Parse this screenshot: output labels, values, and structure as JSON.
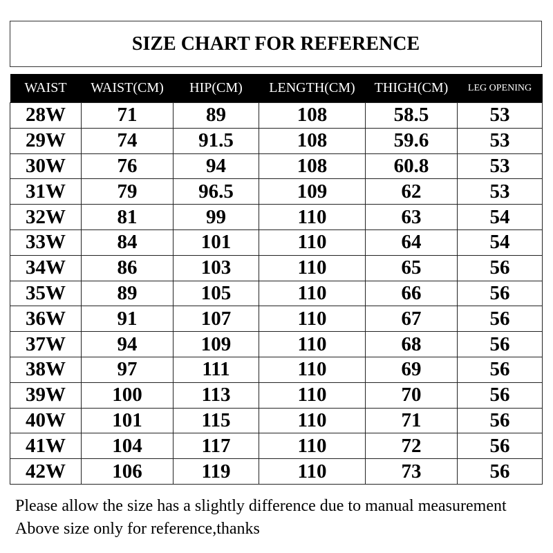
{
  "header": {
    "title": "SIZE CHART FOR REFERENCE"
  },
  "table": {
    "columns": [
      "WAIST",
      "WAIST(CM)",
      "HIP(CM)",
      "LENGTH(CM)",
      "THIGH(CM)",
      "LEG OPENING"
    ],
    "rows": [
      [
        "28W",
        "71",
        "89",
        "108",
        "58.5",
        "53"
      ],
      [
        "29W",
        "74",
        "91.5",
        "108",
        "59.6",
        "53"
      ],
      [
        "30W",
        "76",
        "94",
        "108",
        "60.8",
        "53"
      ],
      [
        "31W",
        "79",
        "96.5",
        "109",
        "62",
        "53"
      ],
      [
        "32W",
        "81",
        "99",
        "110",
        "63",
        "54"
      ],
      [
        "33W",
        "84",
        "101",
        "110",
        "64",
        "54"
      ],
      [
        "34W",
        "86",
        "103",
        "110",
        "65",
        "56"
      ],
      [
        "35W",
        "89",
        "105",
        "110",
        "66",
        "56"
      ],
      [
        "36W",
        "91",
        "107",
        "110",
        "67",
        "56"
      ],
      [
        "37W",
        "94",
        "109",
        "110",
        "68",
        "56"
      ],
      [
        "38W",
        "97",
        "111",
        "110",
        "69",
        "56"
      ],
      [
        "39W",
        "100",
        "113",
        "110",
        "70",
        "56"
      ],
      [
        "40W",
        "101",
        "115",
        "110",
        "71",
        "56"
      ],
      [
        "41W",
        "104",
        "117",
        "110",
        "72",
        "56"
      ],
      [
        "42W",
        "106",
        "119",
        "110",
        "73",
        "56"
      ]
    ]
  },
  "footer": {
    "lines": [
      "Please allow the size has a slightly difference due to manual measurement",
      "Above size only for reference,thanks"
    ]
  }
}
